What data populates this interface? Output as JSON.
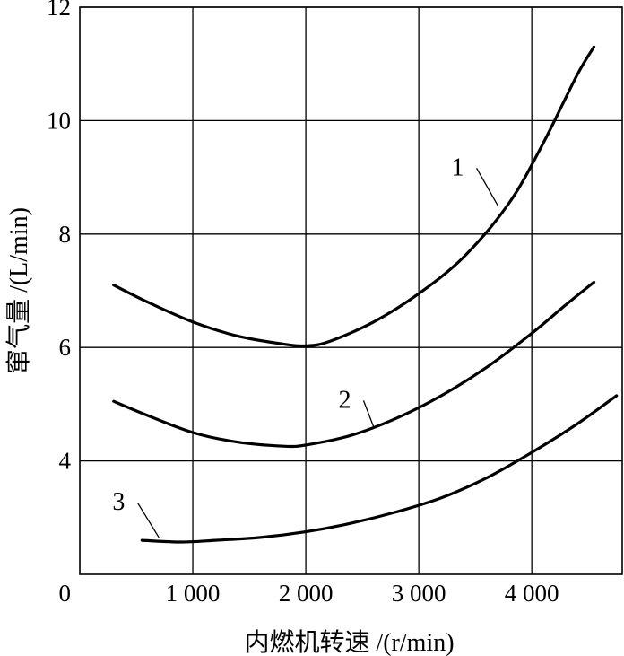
{
  "chart_data": {
    "type": "line",
    "title": "",
    "xlabel": "内燃机转速 /(r/min)",
    "ylabel": "窜气量 /(L/min)",
    "xlim": [
      0,
      4800
    ],
    "ylim": [
      2,
      12
    ],
    "x_ticks": [
      {
        "value": 1000,
        "label": "1 000"
      },
      {
        "value": 2000,
        "label": "2 000"
      },
      {
        "value": 3000,
        "label": "3 000"
      },
      {
        "value": 4000,
        "label": "4 000"
      }
    ],
    "y_ticks": [
      {
        "value": 4,
        "label": "4"
      },
      {
        "value": 6,
        "label": "6"
      },
      {
        "value": 8,
        "label": "8"
      },
      {
        "value": 10,
        "label": "10"
      },
      {
        "value": 12,
        "label": "12"
      }
    ],
    "origin_label": "0",
    "grid": true,
    "series": [
      {
        "name": "1",
        "points": [
          [
            300,
            7.1
          ],
          [
            600,
            6.8
          ],
          [
            1000,
            6.45
          ],
          [
            1400,
            6.2
          ],
          [
            1800,
            6.06
          ],
          [
            2000,
            6.03
          ],
          [
            2200,
            6.1
          ],
          [
            2600,
            6.45
          ],
          [
            3000,
            6.95
          ],
          [
            3400,
            7.6
          ],
          [
            3800,
            8.55
          ],
          [
            4100,
            9.6
          ],
          [
            4400,
            10.8
          ],
          [
            4550,
            11.3
          ]
        ],
        "label_anchor": [
          3400,
          9.1
        ],
        "leader_to": [
          3700,
          8.5
        ]
      },
      {
        "name": "2",
        "points": [
          [
            300,
            5.05
          ],
          [
            600,
            4.8
          ],
          [
            1000,
            4.5
          ],
          [
            1400,
            4.33
          ],
          [
            1800,
            4.26
          ],
          [
            2000,
            4.28
          ],
          [
            2400,
            4.45
          ],
          [
            2800,
            4.75
          ],
          [
            3200,
            5.15
          ],
          [
            3600,
            5.65
          ],
          [
            4000,
            6.25
          ],
          [
            4300,
            6.75
          ],
          [
            4550,
            7.15
          ]
        ],
        "label_anchor": [
          2400,
          5.0
        ],
        "leader_to": [
          2600,
          4.6
        ]
      },
      {
        "name": "3",
        "points": [
          [
            550,
            2.6
          ],
          [
            900,
            2.57
          ],
          [
            1200,
            2.6
          ],
          [
            1600,
            2.65
          ],
          [
            2000,
            2.75
          ],
          [
            2400,
            2.9
          ],
          [
            2800,
            3.1
          ],
          [
            3200,
            3.35
          ],
          [
            3600,
            3.7
          ],
          [
            4000,
            4.15
          ],
          [
            4400,
            4.65
          ],
          [
            4750,
            5.15
          ]
        ],
        "label_anchor": [
          400,
          3.2
        ],
        "leader_to": [
          700,
          2.65
        ]
      }
    ]
  }
}
